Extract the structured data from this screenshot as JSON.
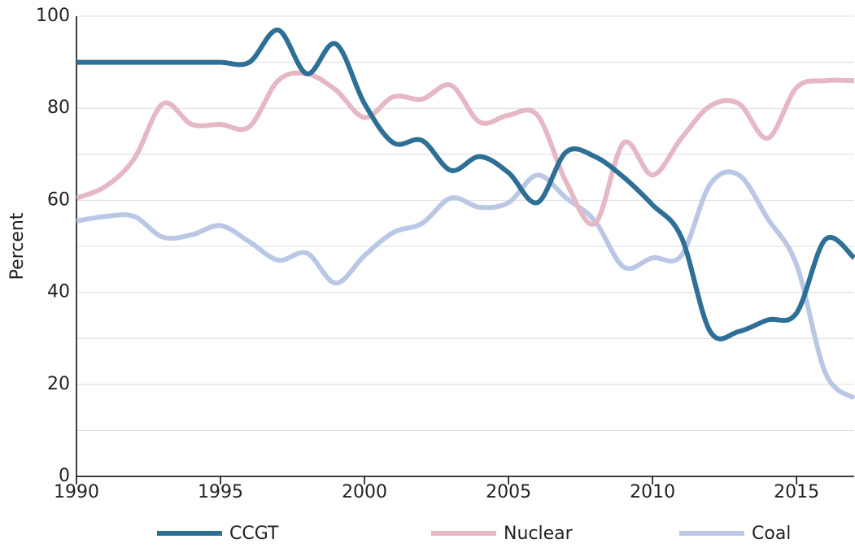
{
  "chart_data": {
    "type": "line",
    "y_label": "Percent",
    "x": [
      1990,
      1991,
      1992,
      1993,
      1994,
      1995,
      1996,
      1997,
      1998,
      1999,
      2000,
      2001,
      2002,
      2003,
      2004,
      2005,
      2006,
      2007,
      2008,
      2009,
      2010,
      2011,
      2012,
      2013,
      2014,
      2015,
      2016,
      2017
    ],
    "series": [
      {
        "name": "CCGT",
        "color": "#2e6f96",
        "values": [
          90,
          90,
          90,
          90,
          90,
          90,
          90,
          97,
          87.5,
          94,
          81,
          72.5,
          73,
          66.5,
          69.5,
          66,
          59.5,
          70.5,
          69.5,
          65,
          59,
          52,
          31.5,
          31.5,
          34,
          35.5,
          51.5,
          47.5
        ]
      },
      {
        "name": "Nuclear",
        "color": "#e5b8c3",
        "values": [
          60.5,
          63,
          69,
          81,
          76.5,
          76.5,
          76,
          86,
          87.5,
          84,
          78,
          82.5,
          82,
          85,
          77,
          78.5,
          78.5,
          64,
          55,
          72.5,
          65.5,
          73.5,
          80.5,
          81,
          73.5,
          84.5,
          86,
          86
        ]
      },
      {
        "name": "Coal",
        "color": "#bac8e6",
        "values": [
          55.5,
          56.5,
          56.5,
          52,
          52.5,
          54.5,
          51,
          47,
          48.5,
          42,
          48,
          53,
          55,
          60.5,
          58.5,
          59.5,
          65.5,
          60.5,
          55.5,
          45.5,
          47.5,
          48,
          63.5,
          65.5,
          56,
          46,
          22.5,
          17
        ]
      }
    ],
    "xlim": [
      1990,
      2017
    ],
    "xticks": [
      1990,
      1995,
      2000,
      2005,
      2010,
      2015
    ],
    "ylim": [
      0,
      100
    ],
    "yticks": [
      0,
      20,
      40,
      60,
      80,
      100
    ],
    "minor_yticks": [
      10,
      30,
      50,
      70,
      90
    ],
    "grid": true,
    "legend": "bottom"
  }
}
